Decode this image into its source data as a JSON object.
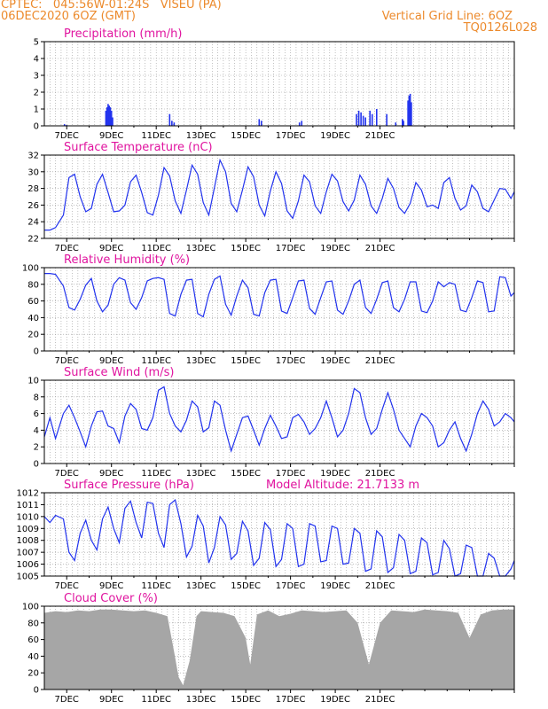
{
  "header": {
    "line1": "CPTEC:   045:56W-01:24S   VISEU (PA)",
    "line2": "06DEC2020 6OZ (GMT)",
    "vgrid": "Vertical Grid Line: 6OZ",
    "code": "TQ0126L028"
  },
  "colors": {
    "header": "#ec8a2c",
    "title": "#e0149f",
    "line": "#2233ee",
    "cloud": "#a6a6a6"
  },
  "chart_data": [
    {
      "type": "bar",
      "title": "Precipitation (mm/h)",
      "ylim": [
        0,
        5
      ],
      "yticks": [
        0,
        1,
        2,
        3,
        4,
        5
      ],
      "xticks": [
        "7DEC",
        "9DEC",
        "11DEC",
        "13DEC",
        "15DEC",
        "17DEC",
        "19DEC",
        "21DEC"
      ],
      "x": [
        0.9,
        1.0,
        2.75,
        2.8,
        2.85,
        2.9,
        2.95,
        3.0,
        3.05,
        5.6,
        5.7,
        5.8,
        9.6,
        9.7,
        11.4,
        11.5,
        13.95,
        14.05,
        14.15,
        14.25,
        14.35,
        14.55,
        14.65,
        14.85,
        15.3,
        15.7,
        16.0,
        16.05,
        16.25,
        16.3,
        16.35,
        16.4
      ],
      "values": [
        0.1,
        0.05,
        0.9,
        1.1,
        1.3,
        1.2,
        1.1,
        0.9,
        0.5,
        0.7,
        0.3,
        0.2,
        0.4,
        0.3,
        0.2,
        0.3,
        0.7,
        0.9,
        0.8,
        0.6,
        0.5,
        0.9,
        0.7,
        1.0,
        0.7,
        0.2,
        0.4,
        0.3,
        1.5,
        1.8,
        1.9,
        1.4
      ]
    },
    {
      "type": "line",
      "title": "Surface Temperature (nC)",
      "ylim": [
        22,
        32
      ],
      "yticks": [
        22,
        24,
        26,
        28,
        30,
        32
      ],
      "xticks": [
        "7DEC",
        "9DEC",
        "11DEC",
        "13DEC",
        "15DEC",
        "17DEC",
        "19DEC",
        "21DEC"
      ],
      "x": [
        0,
        0.25,
        0.5,
        0.85,
        1.1,
        1.35,
        1.6,
        1.85,
        2.1,
        2.35,
        2.6,
        2.85,
        3.1,
        3.35,
        3.6,
        3.85,
        4.1,
        4.35,
        4.6,
        4.85,
        5.1,
        5.35,
        5.6,
        5.85,
        6.1,
        6.35,
        6.6,
        6.85,
        7.1,
        7.35,
        7.6,
        7.85,
        8.1,
        8.35,
        8.6,
        8.85,
        9.1,
        9.35,
        9.6,
        9.85,
        10.1,
        10.35,
        10.6,
        10.85,
        11.1,
        11.35,
        11.6,
        11.85,
        12.1,
        12.35,
        12.6,
        12.85,
        13.1,
        13.35,
        13.6,
        13.85,
        14.1,
        14.35,
        14.6,
        14.85,
        15.1,
        15.35,
        15.6,
        15.85,
        16.1,
        16.35,
        16.6,
        16.85,
        17.1,
        17.35,
        17.6,
        17.85,
        18.1,
        18.35,
        18.6,
        18.85,
        19.1,
        19.35,
        19.6,
        19.85,
        20.1,
        20.35,
        20.6,
        20.85,
        21.0
      ],
      "series": [
        {
          "values": [
            23.0,
            23.0,
            23.3,
            24.8,
            29.3,
            29.7,
            27.0,
            25.2,
            25.6,
            28.5,
            29.7,
            27.5,
            25.2,
            25.3,
            26.0,
            28.8,
            29.6,
            27.5,
            25.1,
            24.8,
            27.2,
            30.5,
            29.5,
            26.5,
            25.0,
            27.8,
            30.8,
            29.7,
            26.3,
            24.8,
            28.1,
            31.4,
            30.0,
            26.2,
            25.2,
            27.8,
            30.6,
            29.4,
            26.0,
            24.7,
            27.7,
            30.0,
            28.6,
            25.3,
            24.4,
            26.5,
            29.6,
            28.8,
            25.9,
            25.0,
            27.6,
            29.7,
            28.9,
            26.4,
            25.3,
            26.6,
            29.6,
            28.5,
            25.9,
            25.0,
            26.8,
            29.2,
            28.0,
            25.7,
            25.0,
            26.2,
            28.7,
            27.8,
            25.8,
            26.0,
            25.6,
            28.7,
            29.3,
            26.8,
            25.4,
            25.9,
            28.4,
            27.6,
            25.6,
            25.2,
            26.6,
            28.0,
            27.9,
            26.8,
            27.6
          ]
        }
      ]
    },
    {
      "type": "line",
      "title": "Relative Humidity (%)",
      "ylim": [
        0,
        100
      ],
      "yticks": [
        0,
        20,
        40,
        60,
        80,
        100
      ],
      "xticks": [
        "7DEC",
        "9DEC",
        "11DEC",
        "13DEC",
        "15DEC",
        "17DEC",
        "19DEC",
        "21DEC"
      ],
      "x": [
        0,
        0.25,
        0.5,
        0.85,
        1.1,
        1.35,
        1.6,
        1.85,
        2.1,
        2.35,
        2.6,
        2.85,
        3.1,
        3.35,
        3.6,
        3.85,
        4.1,
        4.35,
        4.6,
        4.85,
        5.1,
        5.35,
        5.6,
        5.85,
        6.1,
        6.35,
        6.6,
        6.85,
        7.1,
        7.35,
        7.6,
        7.85,
        8.1,
        8.35,
        8.6,
        8.85,
        9.1,
        9.35,
        9.6,
        9.85,
        10.1,
        10.35,
        10.6,
        10.85,
        11.1,
        11.35,
        11.6,
        11.85,
        12.1,
        12.35,
        12.6,
        12.85,
        13.1,
        13.35,
        13.6,
        13.85,
        14.1,
        14.35,
        14.6,
        14.85,
        15.1,
        15.35,
        15.6,
        15.85,
        16.1,
        16.35,
        16.6,
        16.85,
        17.1,
        17.35,
        17.6,
        17.85,
        18.1,
        18.35,
        18.6,
        18.85,
        19.1,
        19.35,
        19.6,
        19.85,
        20.1,
        20.35,
        20.6,
        20.85,
        21.0
      ],
      "series": [
        {
          "values": [
            93,
            93,
            92,
            78,
            52,
            49,
            62,
            79,
            87,
            60,
            47,
            55,
            80,
            88,
            85,
            58,
            50,
            64,
            84,
            87,
            88,
            86,
            45,
            42,
            68,
            85,
            86,
            45,
            41,
            68,
            86,
            90,
            56,
            43,
            66,
            85,
            76,
            44,
            42,
            70,
            85,
            86,
            48,
            45,
            64,
            84,
            85,
            51,
            44,
            64,
            83,
            84,
            49,
            44,
            60,
            80,
            85,
            52,
            45,
            62,
            82,
            84,
            52,
            47,
            62,
            83,
            83,
            48,
            46,
            60,
            83,
            77,
            82,
            80,
            49,
            47,
            64,
            84,
            82,
            47,
            48,
            89,
            88,
            66,
            70
          ]
        }
      ]
    },
    {
      "type": "line",
      "title": "Surface Wind (m/s)",
      "ylim": [
        0,
        10
      ],
      "yticks": [
        0,
        2,
        4,
        6,
        8,
        10
      ],
      "xticks": [
        "7DEC",
        "9DEC",
        "11DEC",
        "13DEC",
        "15DEC",
        "17DEC",
        "19DEC",
        "21DEC"
      ],
      "x": [
        0,
        0.25,
        0.5,
        0.85,
        1.1,
        1.35,
        1.6,
        1.85,
        2.1,
        2.35,
        2.6,
        2.85,
        3.1,
        3.35,
        3.6,
        3.85,
        4.1,
        4.35,
        4.6,
        4.85,
        5.1,
        5.35,
        5.6,
        5.85,
        6.1,
        6.35,
        6.6,
        6.85,
        7.1,
        7.35,
        7.6,
        7.85,
        8.1,
        8.35,
        8.6,
        8.85,
        9.1,
        9.35,
        9.6,
        9.85,
        10.1,
        10.35,
        10.6,
        10.85,
        11.1,
        11.35,
        11.6,
        11.85,
        12.1,
        12.35,
        12.6,
        12.85,
        13.1,
        13.35,
        13.6,
        13.85,
        14.1,
        14.35,
        14.6,
        14.85,
        15.1,
        15.35,
        15.6,
        15.85,
        16.1,
        16.35,
        16.6,
        16.85,
        17.1,
        17.35,
        17.6,
        17.85,
        18.1,
        18.35,
        18.6,
        18.85,
        19.1,
        19.35,
        19.6,
        19.85,
        20.1,
        20.35,
        20.6,
        20.85,
        21.0
      ],
      "series": [
        {
          "values": [
            3.2,
            5.5,
            3.0,
            6.0,
            7.0,
            5.5,
            3.8,
            2.0,
            4.5,
            6.2,
            6.3,
            4.5,
            4.2,
            2.5,
            5.7,
            7.2,
            6.5,
            4.2,
            4.0,
            5.5,
            8.8,
            9.2,
            6.0,
            4.5,
            3.8,
            5.2,
            7.5,
            6.8,
            3.8,
            4.3,
            7.5,
            7.0,
            4.0,
            1.5,
            3.5,
            5.5,
            5.7,
            4.0,
            2.2,
            4.2,
            5.8,
            4.5,
            3.0,
            3.2,
            5.5,
            5.9,
            5.0,
            3.5,
            4.2,
            5.5,
            7.5,
            5.5,
            3.2,
            4.0,
            6.0,
            9.0,
            8.5,
            5.5,
            3.5,
            4.2,
            6.5,
            8.5,
            6.5,
            4.0,
            3.0,
            2.0,
            4.5,
            6.0,
            5.5,
            4.5,
            2.0,
            2.5,
            4.0,
            5.0,
            3.0,
            1.5,
            3.5,
            6.0,
            7.5,
            6.5,
            4.5,
            5.0,
            6.0,
            5.5,
            5.0
          ]
        }
      ]
    },
    {
      "type": "line",
      "title": "Surface Pressure (hPa)",
      "annotation": "Model Altitude: 21.7133 m",
      "ylim": [
        1005,
        1012
      ],
      "yticks": [
        1005,
        1006,
        1007,
        1008,
        1009,
        1010,
        1011,
        1012
      ],
      "xticks": [
        "7DEC",
        "9DEC",
        "11DEC",
        "13DEC",
        "15DEC",
        "17DEC",
        "19DEC",
        "21DEC"
      ],
      "x": [
        0,
        0.25,
        0.5,
        0.85,
        1.1,
        1.35,
        1.6,
        1.85,
        2.1,
        2.35,
        2.6,
        2.85,
        3.1,
        3.35,
        3.6,
        3.85,
        4.1,
        4.35,
        4.6,
        4.85,
        5.1,
        5.35,
        5.6,
        5.85,
        6.1,
        6.35,
        6.6,
        6.85,
        7.1,
        7.35,
        7.6,
        7.85,
        8.1,
        8.35,
        8.6,
        8.85,
        9.1,
        9.35,
        9.6,
        9.85,
        10.1,
        10.35,
        10.6,
        10.85,
        11.1,
        11.35,
        11.6,
        11.85,
        12.1,
        12.35,
        12.6,
        12.85,
        13.1,
        13.35,
        13.6,
        13.85,
        14.1,
        14.35,
        14.6,
        14.85,
        15.1,
        15.35,
        15.6,
        15.85,
        16.1,
        16.35,
        16.6,
        16.85,
        17.1,
        17.35,
        17.6,
        17.85,
        18.1,
        18.35,
        18.6,
        18.85,
        19.1,
        19.35,
        19.6,
        19.85,
        20.1,
        20.35,
        20.6,
        20.85,
        21.0
      ],
      "series": [
        {
          "values": [
            1010.0,
            1009.5,
            1010.1,
            1009.8,
            1007.0,
            1006.3,
            1008.6,
            1009.7,
            1008.0,
            1007.2,
            1009.8,
            1010.8,
            1009.0,
            1007.8,
            1010.7,
            1011.3,
            1009.5,
            1008.2,
            1011.2,
            1011.1,
            1008.6,
            1007.4,
            1011.0,
            1011.4,
            1009.4,
            1006.6,
            1007.5,
            1010.1,
            1009.2,
            1006.1,
            1007.4,
            1010.0,
            1009.3,
            1006.4,
            1006.9,
            1009.6,
            1008.8,
            1005.9,
            1006.5,
            1009.5,
            1008.9,
            1005.8,
            1006.4,
            1009.4,
            1009.0,
            1005.8,
            1006.0,
            1009.4,
            1009.2,
            1006.2,
            1006.3,
            1009.2,
            1009.0,
            1006.0,
            1006.1,
            1009.0,
            1008.6,
            1005.4,
            1005.6,
            1008.8,
            1008.3,
            1005.3,
            1005.7,
            1008.5,
            1008.0,
            1005.2,
            1005.4,
            1008.2,
            1007.8,
            1005.1,
            1005.3,
            1008.0,
            1007.3,
            1005.0,
            1005.2,
            1007.6,
            1007.4,
            1005.0,
            1005.0,
            1006.9,
            1006.5,
            1005.0,
            1005.0,
            1005.6,
            1006.3
          ]
        }
      ]
    },
    {
      "type": "area",
      "title": "Cloud Cover (%)",
      "ylim": [
        0,
        100
      ],
      "yticks": [
        0,
        20,
        40,
        60,
        80,
        100
      ],
      "xticks": [
        "7DEC",
        "9DEC",
        "11DEC",
        "13DEC",
        "15DEC",
        "17DEC",
        "19DEC",
        "21DEC"
      ],
      "x": [
        0,
        0.5,
        1.0,
        1.5,
        2.0,
        2.5,
        3.0,
        3.5,
        4.0,
        4.5,
        5.0,
        5.5,
        5.8,
        6.0,
        6.2,
        6.5,
        6.8,
        7.0,
        7.5,
        8.0,
        8.5,
        9.0,
        9.2,
        9.5,
        10.0,
        10.5,
        11.0,
        11.5,
        12.0,
        12.5,
        13.0,
        13.5,
        14.0,
        14.5,
        15.0,
        15.5,
        16.0,
        16.5,
        17.0,
        17.5,
        18.0,
        18.5,
        19.0,
        19.5,
        20.0,
        20.5,
        21.0
      ],
      "series": [
        {
          "values": [
            92,
            94,
            93,
            95,
            94,
            96,
            96,
            95,
            94,
            95,
            92,
            88,
            45,
            15,
            5,
            35,
            88,
            94,
            93,
            92,
            88,
            62,
            30,
            90,
            95,
            88,
            91,
            95,
            94,
            93,
            94,
            95,
            80,
            30,
            80,
            95,
            94,
            93,
            96,
            95,
            94,
            92,
            62,
            90,
            95,
            96,
            96
          ]
        }
      ]
    }
  ]
}
